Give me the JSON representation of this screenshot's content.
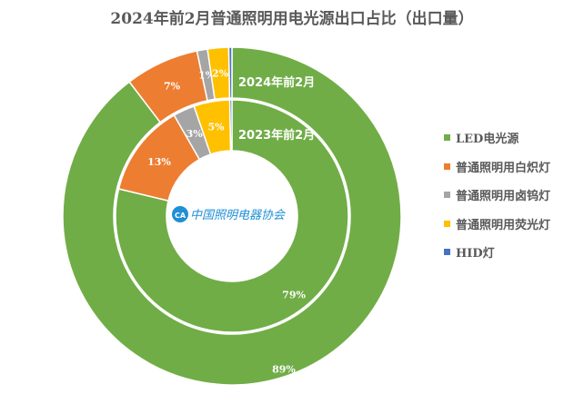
{
  "chart_data": {
    "type": "doughnut",
    "title": "2024年前2月普通照明用电光源出口占比（出口量）",
    "categories": [
      "LED电光源",
      "普通照明用白炽灯",
      "普通照明用卤钨灯",
      "普通照明用荧光灯",
      "HID灯"
    ],
    "colors": [
      "#70AD47",
      "#ED7D31",
      "#A5A5A5",
      "#FFC000",
      "#4472C4"
    ],
    "series": [
      {
        "name": "2024年前2月",
        "ring": "outer",
        "values": [
          89,
          7,
          1,
          2,
          0.3
        ],
        "labels": [
          "89%",
          "7%",
          "1%",
          "2%",
          ""
        ]
      },
      {
        "name": "2023年前2月",
        "ring": "inner",
        "values": [
          79,
          13,
          3,
          5,
          0.3
        ],
        "labels": [
          "79%",
          "13%",
          "3%",
          "5%",
          ""
        ]
      }
    ],
    "legend_position": "right"
  },
  "logo": {
    "text": "中国照明电器协会",
    "mark": "CALI"
  }
}
